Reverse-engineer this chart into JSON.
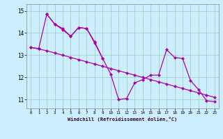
{
  "xlabel": "Windchill (Refroidissement éolien,°C)",
  "background_color": "#cceeff",
  "grid_color": "#aaddcc",
  "line_color": "#aa00aa",
  "xlim": [
    -0.5,
    23.5
  ],
  "ylim": [
    10.6,
    15.3
  ],
  "yticks": [
    11,
    12,
    13,
    14,
    15
  ],
  "xticks": [
    0,
    1,
    2,
    3,
    4,
    5,
    6,
    7,
    8,
    9,
    10,
    11,
    12,
    13,
    14,
    15,
    16,
    17,
    18,
    19,
    20,
    21,
    22,
    23
  ],
  "line1_x": [
    0,
    1,
    2,
    3,
    4,
    5,
    6,
    7,
    8,
    9,
    10,
    11,
    12,
    13,
    14,
    15,
    16,
    17,
    18,
    19,
    20,
    21,
    22,
    23
  ],
  "line1_y": [
    13.35,
    13.3,
    14.85,
    14.4,
    14.2,
    13.85,
    14.25,
    14.2,
    13.6,
    12.85,
    12.15,
    11.0,
    11.05,
    11.75,
    11.9,
    12.1,
    12.1,
    13.25,
    12.9,
    12.85,
    11.85,
    11.45,
    10.95,
    10.9
  ],
  "line2_x": [
    2,
    3,
    4,
    5,
    6,
    7,
    8,
    9
  ],
  "line2_y": [
    14.85,
    14.4,
    14.15,
    13.85,
    14.25,
    14.2,
    13.55,
    12.85
  ],
  "line3_x": [
    0,
    1,
    2,
    3,
    4,
    5,
    6,
    7,
    8,
    9,
    10,
    11,
    12,
    13,
    14,
    15,
    16,
    17,
    18,
    19,
    20,
    21,
    22,
    23
  ],
  "line3_y": [
    13.35,
    13.28,
    13.2,
    13.1,
    13.0,
    12.9,
    12.8,
    12.7,
    12.6,
    12.5,
    12.4,
    12.3,
    12.2,
    12.1,
    12.0,
    11.9,
    11.8,
    11.7,
    11.6,
    11.5,
    11.4,
    11.3,
    11.2,
    11.1
  ]
}
